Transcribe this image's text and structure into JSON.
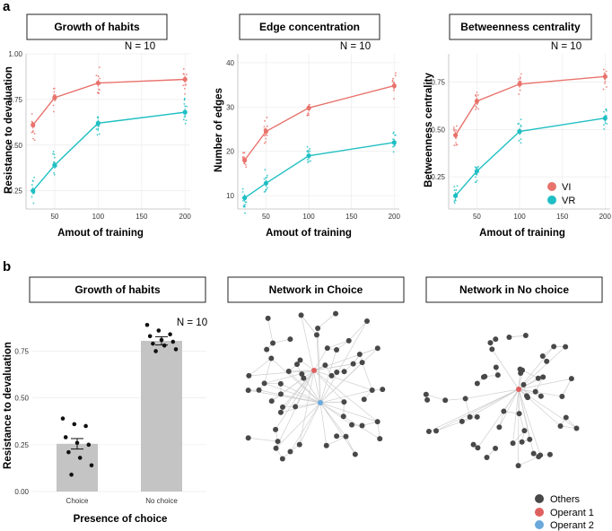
{
  "panels": {
    "a": "a",
    "b": "b"
  },
  "colors": {
    "vi": "#e8736c",
    "vr": "#1fbfc3",
    "bar": "#c4c4c4",
    "others": "#484848",
    "operant1": "#e06060",
    "operant2": "#6aa9dc"
  },
  "legend_a": {
    "vi": "VI",
    "vr": "VR"
  },
  "legend_b": {
    "others": "Others",
    "operant1": "Operant 1",
    "operant2": "Operant 2"
  },
  "chart_data": [
    {
      "type": "line",
      "title": "Growth of habits",
      "annotation": "N = 10",
      "xlabel": "Amout of training",
      "ylabel": "Resistance to devaluation",
      "x": [
        25,
        50,
        100,
        200
      ],
      "xlim": [
        17,
        206
      ],
      "xticks": [
        "50",
        "100",
        "150",
        "200"
      ],
      "ylim": [
        0.15,
        1.0
      ],
      "yticks": [
        "0.25",
        "0.50",
        "0.75",
        "1.00"
      ],
      "series": [
        {
          "name": "VI",
          "values": [
            0.61,
            0.76,
            0.84,
            0.86
          ]
        },
        {
          "name": "VR",
          "values": [
            0.25,
            0.39,
            0.62,
            0.68
          ]
        }
      ]
    },
    {
      "type": "line",
      "title": "Edge concentration",
      "annotation": "N = 10",
      "xlabel": "Amout of training",
      "ylabel": "Number of edges",
      "x": [
        25,
        50,
        100,
        200
      ],
      "xlim": [
        17,
        206
      ],
      "xticks": [
        "50",
        "100",
        "150",
        "200"
      ],
      "ylim": [
        7,
        42
      ],
      "yticks": [
        "10",
        "20",
        "30",
        "40"
      ],
      "series": [
        {
          "name": "VI",
          "values": [
            18,
            24.5,
            29.8,
            34.8
          ]
        },
        {
          "name": "VR",
          "values": [
            9.5,
            12.8,
            19,
            22
          ]
        }
      ]
    },
    {
      "type": "line",
      "title": "Betweenness centrality",
      "annotation": "N = 10",
      "xlabel": "Amout of training",
      "ylabel": "Betweenness centrality",
      "x": [
        25,
        50,
        100,
        200
      ],
      "xlim": [
        17,
        206
      ],
      "xticks": [
        "50",
        "100",
        "150",
        "200"
      ],
      "ylim": [
        0.08,
        0.9
      ],
      "yticks": [
        "0.25",
        "0.50",
        "0.75"
      ],
      "series": [
        {
          "name": "VI",
          "values": [
            0.47,
            0.65,
            0.74,
            0.78
          ]
        },
        {
          "name": "VR",
          "values": [
            0.15,
            0.28,
            0.49,
            0.56
          ]
        }
      ]
    },
    {
      "type": "bar",
      "title": "Growth of habits",
      "annotation": "N = 10",
      "xlabel": "Presence of choice",
      "ylabel": "Resistance to devaluation",
      "categories": [
        "Choice",
        "No choice"
      ],
      "values": [
        0.255,
        0.805
      ],
      "errors": [
        0.028,
        0.022
      ],
      "points": [
        [
          0.39,
          0.36,
          0.35,
          0.29,
          0.26,
          0.25,
          0.21,
          0.18,
          0.14,
          0.09
        ],
        [
          0.89,
          0.86,
          0.84,
          0.83,
          0.81,
          0.8,
          0.79,
          0.78,
          0.76,
          0.75
        ]
      ],
      "ylim": [
        0,
        0.92
      ],
      "yticks": [
        "0.00",
        "0.25",
        "0.50",
        "0.75"
      ]
    },
    {
      "type": "network",
      "title": "Network in Choice",
      "highlight": {
        "operant1": 8,
        "operant2": 28
      }
    },
    {
      "type": "network",
      "title": "Network in No choice",
      "highlight": {
        "operant1": 22
      }
    }
  ]
}
